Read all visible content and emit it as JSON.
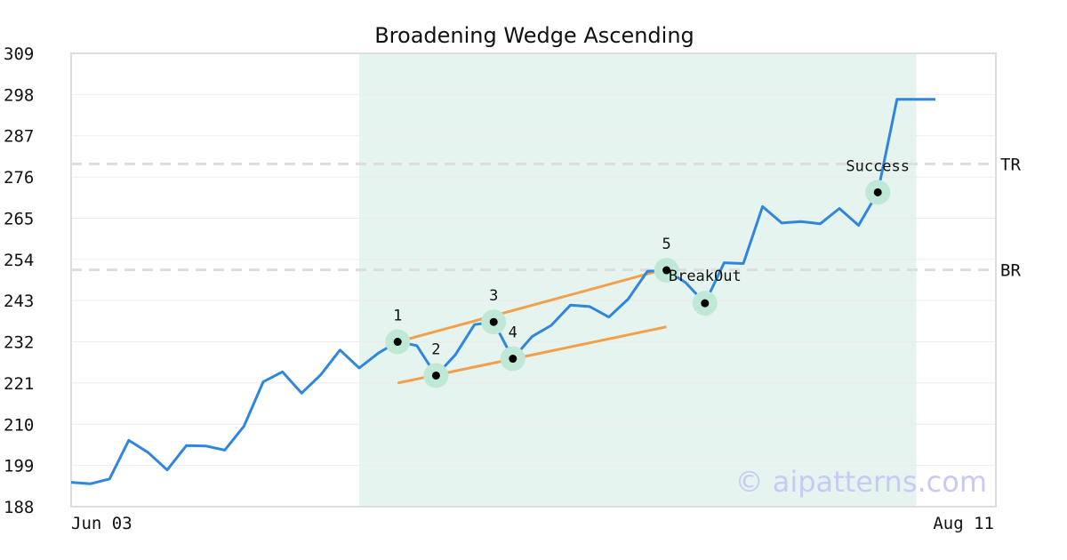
{
  "chart_data": {
    "type": "line",
    "title": "Broadening Wedge Ascending",
    "xlabel": "",
    "ylabel": "",
    "x_ticks": [
      "Jun 03",
      "Aug 11"
    ],
    "y_ticks": [
      188,
      199,
      210,
      221,
      232,
      243,
      254,
      265,
      276,
      287,
      298,
      309
    ],
    "ylim": [
      188,
      309
    ],
    "grid": true,
    "colors": {
      "line": "#2f86de",
      "trend": "#f2a04b",
      "shade": "#e6f4ef",
      "marker_ring": "#bfe8d6",
      "marker_dot": "#000000",
      "level": "#dddddd",
      "watermark": "#c9c9f5"
    },
    "series": [
      {
        "values": [
          194.5,
          194.1,
          195.4,
          205.7,
          202.5,
          197.8,
          204.3,
          204.2,
          203.1,
          209.5,
          221.3,
          224.0,
          218.3,
          223.2,
          229.8,
          225.0,
          229.0,
          232.0,
          231.0,
          223.0,
          228.5,
          236.6,
          237.3,
          227.5,
          233.4,
          236.4,
          241.8,
          241.4,
          238.6,
          243.4,
          250.8,
          251.1,
          247.8,
          242.3,
          253.1,
          252.9,
          268.1,
          263.7,
          264.1,
          263.5,
          267.6,
          263.1,
          271.9,
          296.7,
          296.7,
          296.7
        ]
      }
    ],
    "shaded_region": {
      "from_index": 15,
      "to_index": 44
    },
    "trend_lines": [
      {
        "from": [
          17,
          232.0
        ],
        "to": [
          31,
          251.5
        ]
      },
      {
        "from": [
          17,
          221.0
        ],
        "to": [
          31,
          236.0
        ]
      }
    ],
    "pattern_points": [
      {
        "label": "1",
        "index": 17,
        "value": 232.0
      },
      {
        "label": "2",
        "index": 19,
        "value": 223.0
      },
      {
        "label": "3",
        "index": 22,
        "value": 237.3
      },
      {
        "label": "4",
        "index": 23,
        "value": 227.5
      },
      {
        "label": "5",
        "index": 31,
        "value": 251.1
      }
    ],
    "annotations": [
      {
        "label": "BreakOut",
        "index": 33,
        "value": 242.3
      },
      {
        "label": "Success",
        "index": 42,
        "value": 271.9
      }
    ],
    "levels": [
      {
        "label": "TR",
        "value": 279.5
      },
      {
        "label": "BR",
        "value": 251.2
      }
    ],
    "watermark": "© aipatterns.com"
  }
}
